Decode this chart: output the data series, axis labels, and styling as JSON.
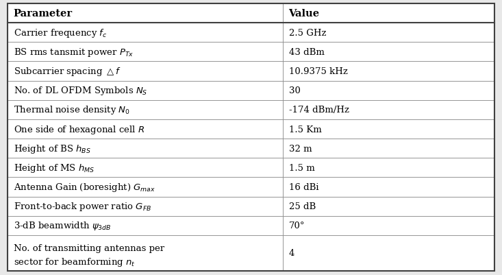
{
  "col_headers": [
    "Parameter",
    "Value"
  ],
  "rows": [
    [
      "Carrier frequency $f_c$",
      "2.5 GHz"
    ],
    [
      "BS rms tansmit power $P_{Tx}$",
      "43 dBm"
    ],
    [
      "Subcarrier spacing $\\triangle f$",
      "10.9375 kHz"
    ],
    [
      "No. of DL OFDM Symbols $N_S$",
      "30"
    ],
    [
      "Thermal noise density $N_0$",
      "-174 dBm/Hz"
    ],
    [
      "One side of hexagonal cell $R$",
      "1.5 Km"
    ],
    [
      "Height of BS $h_{BS}$",
      "32 m"
    ],
    [
      "Height of MS $h_{MS}$",
      "1.5 m"
    ],
    [
      "Antenna Gain (boresight) $G_{max}$",
      "16 dBi"
    ],
    [
      "Front-to-back power ratio $G_{FB}$",
      "25 dB"
    ],
    [
      "3-dB beamwidth $\\psi_{3dB}$",
      "70°"
    ],
    [
      "No. of transmitting antennas per\nsector for beamforming $n_t$",
      "4"
    ]
  ],
  "col_split": 0.565,
  "border_color": "#808080",
  "outer_border_color": "#404040",
  "header_font_size": 10.5,
  "cell_font_size": 9.5,
  "fig_width": 7.33,
  "fig_height": 4.02,
  "dpi": 100,
  "bg_color": "#e8e8e8",
  "cell_bg": "#ffffff"
}
